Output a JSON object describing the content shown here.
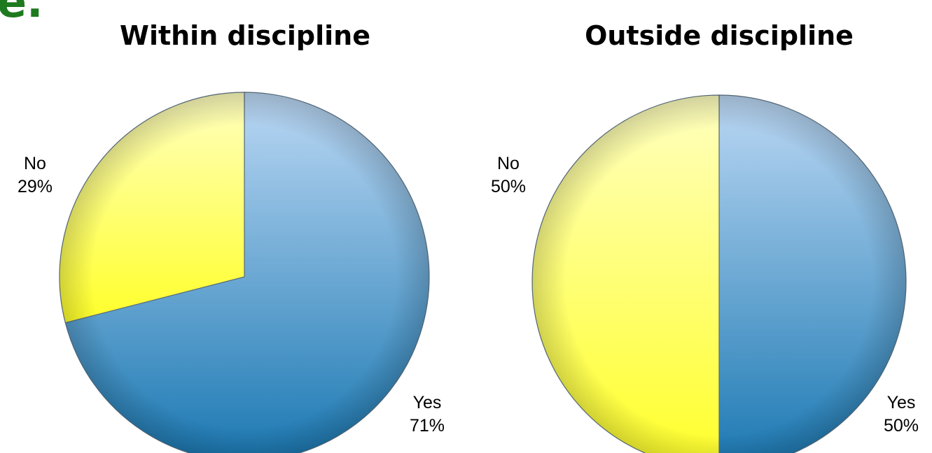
{
  "header_fragment": "e.",
  "colors": {
    "yes_top": "#bcd8f4",
    "yes_bottom": "#1a78b2",
    "no_top": "#ffffc0",
    "no_bottom": "#ffff2a",
    "edge": "#5a6f80"
  },
  "chart_data": [
    {
      "type": "pie",
      "title": "Within discipline",
      "slices": [
        {
          "label": "Yes",
          "value": 71,
          "value_label": "71%"
        },
        {
          "label": "No",
          "value": 29,
          "value_label": "29%"
        }
      ]
    },
    {
      "type": "pie",
      "title": "Outside discipline",
      "slices": [
        {
          "label": "Yes",
          "value": 50,
          "value_label": "50%"
        },
        {
          "label": "No",
          "value": 50,
          "value_label": "50%"
        }
      ]
    }
  ]
}
